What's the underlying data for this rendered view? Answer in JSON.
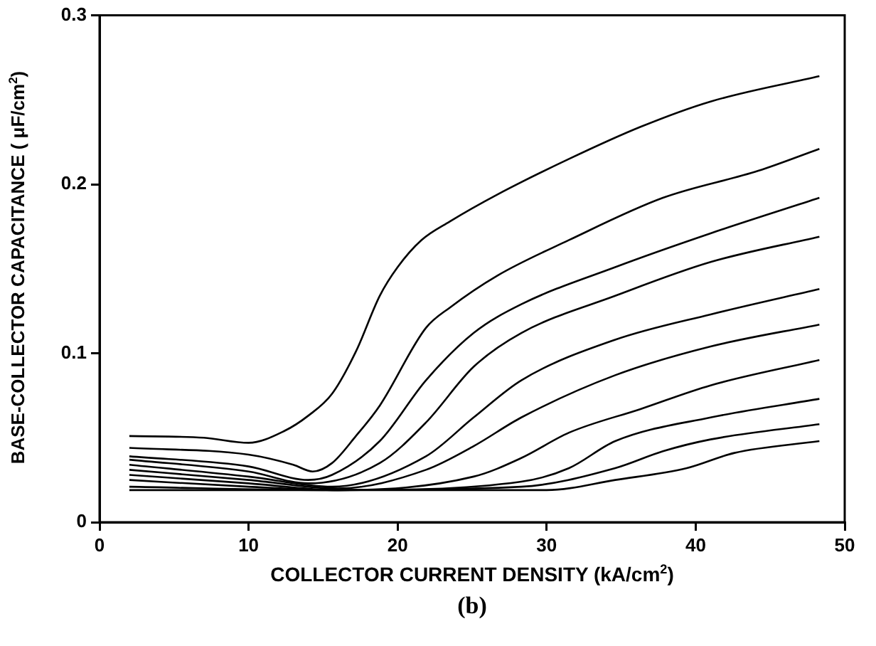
{
  "chart_data": {
    "type": "line",
    "xlabel": "COLLECTOR CURRENT DENSITY (kA/cm$^{2}$)",
    "ylabel": "BASE-COLLECTOR CAPACITANCE ( μF/cm$^{2}$)",
    "annotations": [
      "(b)"
    ],
    "xlim": [
      0,
      50
    ],
    "ylim": [
      0,
      0.3
    ],
    "xticks": [
      0,
      10,
      20,
      30,
      40,
      50
    ],
    "yticks": [
      0,
      0.1,
      0.2,
      0.3
    ],
    "marker": "none",
    "legend": false,
    "series": [
      {
        "color": "#000000",
        "x": [
          2,
          7,
          10,
          12.4,
          14,
          15.6,
          17.2,
          18.8,
          20,
          21.6,
          23.5,
          26.7,
          31.5,
          36.3,
          41,
          48.3
        ],
        "values": [
          0.051,
          0.05,
          0.047,
          0.054,
          0.063,
          0.076,
          0.101,
          0.134,
          0.151,
          0.167,
          0.178,
          0.194,
          0.215,
          0.234,
          0.249,
          0.264
        ]
      },
      {
        "color": "#000000",
        "x": [
          2,
          10,
          13,
          14.3,
          15.6,
          17.2,
          18.8,
          21.9,
          23.5,
          26.7,
          31.5,
          37.8,
          44.2,
          48.3
        ],
        "values": [
          0.044,
          0.04,
          0.034,
          0.03,
          0.035,
          0.051,
          0.069,
          0.115,
          0.127,
          0.146,
          0.167,
          0.192,
          0.208,
          0.221
        ]
      },
      {
        "color": "#000000",
        "x": [
          2,
          10,
          14,
          15.6,
          18.8,
          21.9,
          25.1,
          28.3,
          34.6,
          41,
          48.3
        ],
        "values": [
          0.039,
          0.033,
          0.025,
          0.028,
          0.048,
          0.084,
          0.112,
          0.129,
          0.151,
          0.171,
          0.192
        ]
      },
      {
        "color": "#000000",
        "x": [
          2,
          10,
          14,
          18.8,
          21.9,
          25.1,
          28.3,
          34.6,
          41,
          48.3
        ],
        "values": [
          0.037,
          0.03,
          0.023,
          0.035,
          0.059,
          0.092,
          0.112,
          0.134,
          0.154,
          0.169
        ]
      },
      {
        "color": "#000000",
        "x": [
          2,
          10,
          15.6,
          21.9,
          25.1,
          28.3,
          34.6,
          41,
          48.3
        ],
        "values": [
          0.034,
          0.027,
          0.021,
          0.039,
          0.062,
          0.084,
          0.108,
          0.123,
          0.138
        ]
      },
      {
        "color": "#000000",
        "x": [
          2,
          10,
          16,
          21.9,
          25.1,
          28.3,
          34.6,
          41,
          48.3
        ],
        "values": [
          0.031,
          0.025,
          0.02,
          0.031,
          0.045,
          0.062,
          0.087,
          0.104,
          0.117
        ]
      },
      {
        "color": "#000000",
        "x": [
          2,
          10,
          16,
          25.1,
          28.3,
          31.5,
          36.3,
          41,
          48.3
        ],
        "values": [
          0.028,
          0.023,
          0.019,
          0.027,
          0.038,
          0.053,
          0.067,
          0.081,
          0.096
        ]
      },
      {
        "color": "#000000",
        "x": [
          2,
          10,
          16,
          28.3,
          31.5,
          34.6,
          41,
          48.3
        ],
        "values": [
          0.025,
          0.021,
          0.019,
          0.024,
          0.032,
          0.048,
          0.062,
          0.073
        ]
      },
      {
        "color": "#000000",
        "x": [
          2,
          15,
          28.3,
          34.6,
          37.8,
          41,
          48.3
        ],
        "values": [
          0.021,
          0.019,
          0.021,
          0.032,
          0.042,
          0.049,
          0.058
        ]
      },
      {
        "color": "#000000",
        "x": [
          2,
          30,
          34.6,
          39.4,
          42.6,
          48.3
        ],
        "values": [
          0.019,
          0.019,
          0.025,
          0.032,
          0.041,
          0.048
        ]
      }
    ]
  }
}
